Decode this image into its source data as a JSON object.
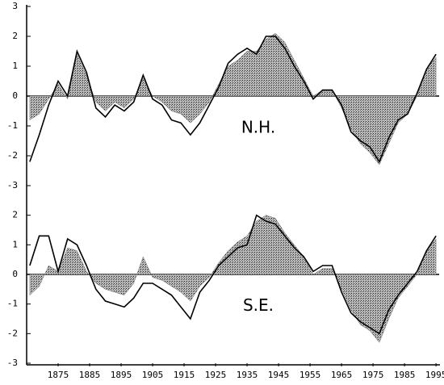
{
  "chart_data": [
    {
      "type": "line",
      "annotation": "N.H.",
      "xlim": [
        1865,
        1996
      ],
      "ylim": [
        -3,
        3
      ],
      "yticks": [
        -3,
        -2,
        -1,
        0,
        1,
        2,
        3
      ],
      "x": [
        1866,
        1869,
        1872,
        1875,
        1878,
        1881,
        1884,
        1887,
        1890,
        1893,
        1896,
        1899,
        1902,
        1905,
        1908,
        1911,
        1914,
        1917,
        1920,
        1923,
        1926,
        1929,
        1932,
        1935,
        1938,
        1941,
        1944,
        1947,
        1950,
        1953,
        1956,
        1959,
        1962,
        1965,
        1968,
        1971,
        1974,
        1977,
        1980,
        1983,
        1986,
        1989,
        1992,
        1995
      ],
      "series": [
        {
          "style": "area",
          "color": "#777777",
          "values": [
            -0.8,
            -0.6,
            -0.1,
            0.4,
            -0.1,
            1.4,
            0.7,
            -0.2,
            -0.5,
            -0.2,
            -0.4,
            -0.1,
            0.6,
            0.0,
            -0.2,
            -0.5,
            -0.6,
            -0.9,
            -0.6,
            -0.2,
            0.4,
            1.0,
            1.2,
            1.5,
            1.5,
            1.9,
            2.1,
            1.8,
            1.2,
            0.6,
            0.0,
            0.2,
            0.2,
            -0.4,
            -1.1,
            -1.6,
            -1.9,
            -2.3,
            -1.6,
            -0.9,
            -0.6,
            0.0,
            0.9,
            1.3
          ]
        },
        {
          "style": "line",
          "color": "#000000",
          "values": [
            -2.2,
            -1.3,
            -0.3,
            0.5,
            0.0,
            1.5,
            0.8,
            -0.4,
            -0.7,
            -0.3,
            -0.5,
            -0.2,
            0.7,
            -0.1,
            -0.3,
            -0.8,
            -0.9,
            -1.3,
            -0.9,
            -0.3,
            0.3,
            1.1,
            1.4,
            1.6,
            1.4,
            2.0,
            2.0,
            1.6,
            1.0,
            0.5,
            -0.1,
            0.2,
            0.2,
            -0.3,
            -1.2,
            -1.5,
            -1.7,
            -2.2,
            -1.4,
            -0.8,
            -0.6,
            0.1,
            0.9,
            1.4
          ]
        }
      ]
    },
    {
      "type": "line",
      "annotation": "S.E.",
      "xlim": [
        1865,
        1996
      ],
      "ylim": [
        -3,
        3
      ],
      "yticks": [
        -3,
        -2,
        -1,
        0,
        1,
        2
      ],
      "xticks": [
        1875,
        1885,
        1895,
        1905,
        1915,
        1925,
        1935,
        1945,
        1955,
        1965,
        1975,
        1985,
        1995
      ],
      "x": [
        1866,
        1869,
        1872,
        1875,
        1878,
        1881,
        1884,
        1887,
        1890,
        1893,
        1896,
        1899,
        1902,
        1905,
        1908,
        1911,
        1914,
        1917,
        1920,
        1923,
        1926,
        1929,
        1932,
        1935,
        1938,
        1941,
        1944,
        1947,
        1950,
        1953,
        1956,
        1959,
        1962,
        1965,
        1968,
        1971,
        1974,
        1977,
        1980,
        1983,
        1986,
        1989,
        1992,
        1995
      ],
      "series": [
        {
          "style": "area",
          "color": "#777777",
          "values": [
            -0.7,
            -0.4,
            0.3,
            0.1,
            0.9,
            0.8,
            0.1,
            -0.3,
            -0.5,
            -0.6,
            -0.7,
            -0.3,
            0.6,
            -0.1,
            -0.2,
            -0.4,
            -0.6,
            -0.9,
            -0.4,
            -0.1,
            0.4,
            0.8,
            1.1,
            1.3,
            1.8,
            2.0,
            1.9,
            1.4,
            1.0,
            0.6,
            0.0,
            0.2,
            0.2,
            -0.5,
            -1.2,
            -1.7,
            -1.9,
            -2.3,
            -1.5,
            -0.8,
            -0.4,
            0.0,
            0.8,
            1.2
          ]
        },
        {
          "style": "line",
          "color": "#000000",
          "values": [
            0.3,
            1.3,
            1.3,
            0.1,
            1.2,
            1.0,
            0.3,
            -0.5,
            -0.9,
            -1.0,
            -1.1,
            -0.8,
            -0.3,
            -0.3,
            -0.5,
            -0.7,
            -1.1,
            -1.5,
            -0.6,
            -0.2,
            0.3,
            0.6,
            0.9,
            1.0,
            2.0,
            1.8,
            1.7,
            1.3,
            0.9,
            0.6,
            0.1,
            0.3,
            0.3,
            -0.6,
            -1.3,
            -1.6,
            -1.8,
            -2.0,
            -1.2,
            -0.7,
            -0.3,
            0.1,
            0.8,
            1.3
          ]
        }
      ]
    }
  ]
}
